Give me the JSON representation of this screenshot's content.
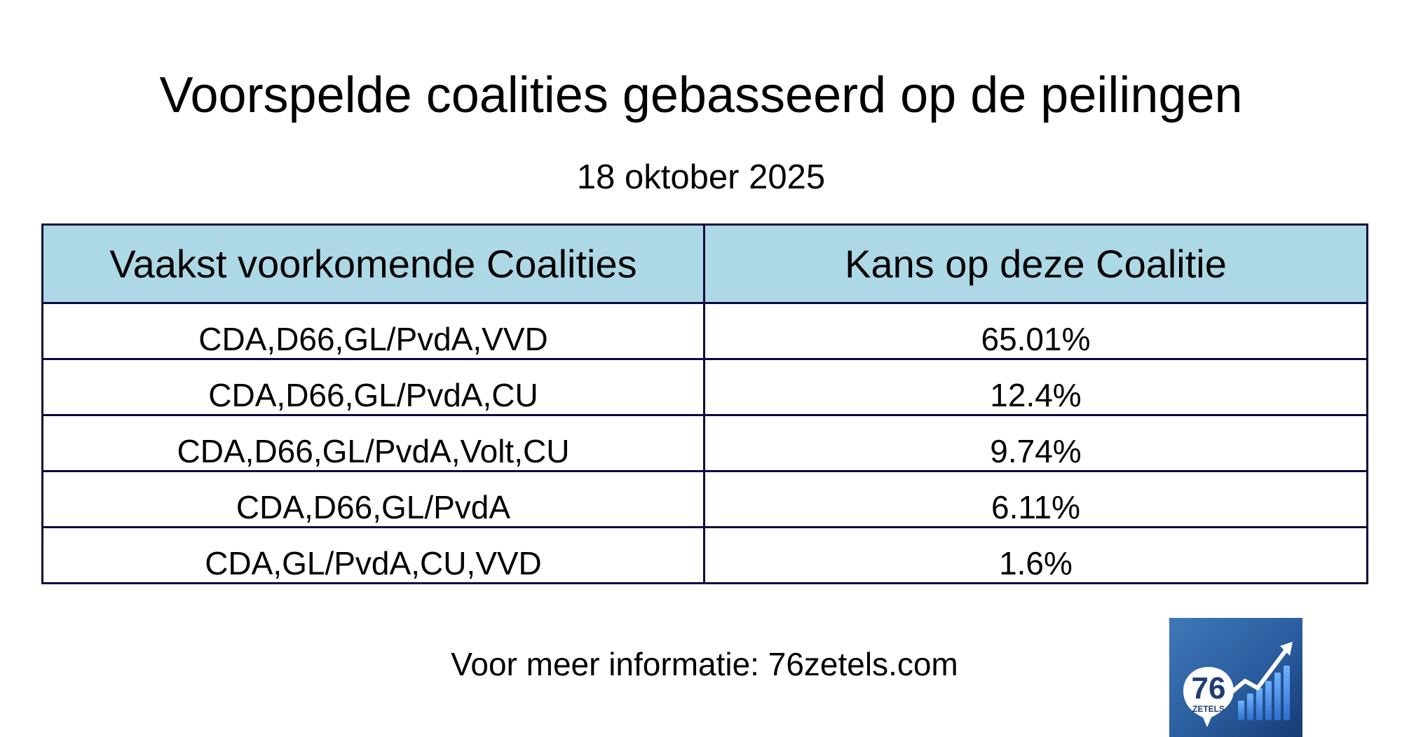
{
  "header": {
    "title": "Voorspelde coalities gebasseerd op de peilingen",
    "date": "18 oktober 2025"
  },
  "table": {
    "columns": [
      "Vaakst voorkomende Coalities",
      "Kans op deze Coalitie"
    ],
    "rows": [
      {
        "coalition": "CDA,D66,GL/PvdA,VVD",
        "chance": "65.01%"
      },
      {
        "coalition": "CDA,D66,GL/PvdA,CU",
        "chance": "12.4%"
      },
      {
        "coalition": "CDA,D66,GL/PvdA,Volt,CU",
        "chance": "9.74%"
      },
      {
        "coalition": "CDA,D66,GL/PvdA",
        "chance": "6.11%"
      },
      {
        "coalition": "CDA,GL/PvdA,CU,VVD",
        "chance": "1.6%"
      }
    ]
  },
  "footer": {
    "text": "Voor meer informatie: 76zetels.com"
  },
  "logo": {
    "number": "76",
    "word": "ZETELS",
    "icon": "bar-chart-arrow-icon"
  },
  "colors": {
    "header_background": "#add8e6",
    "border": "#0a0a3c"
  }
}
